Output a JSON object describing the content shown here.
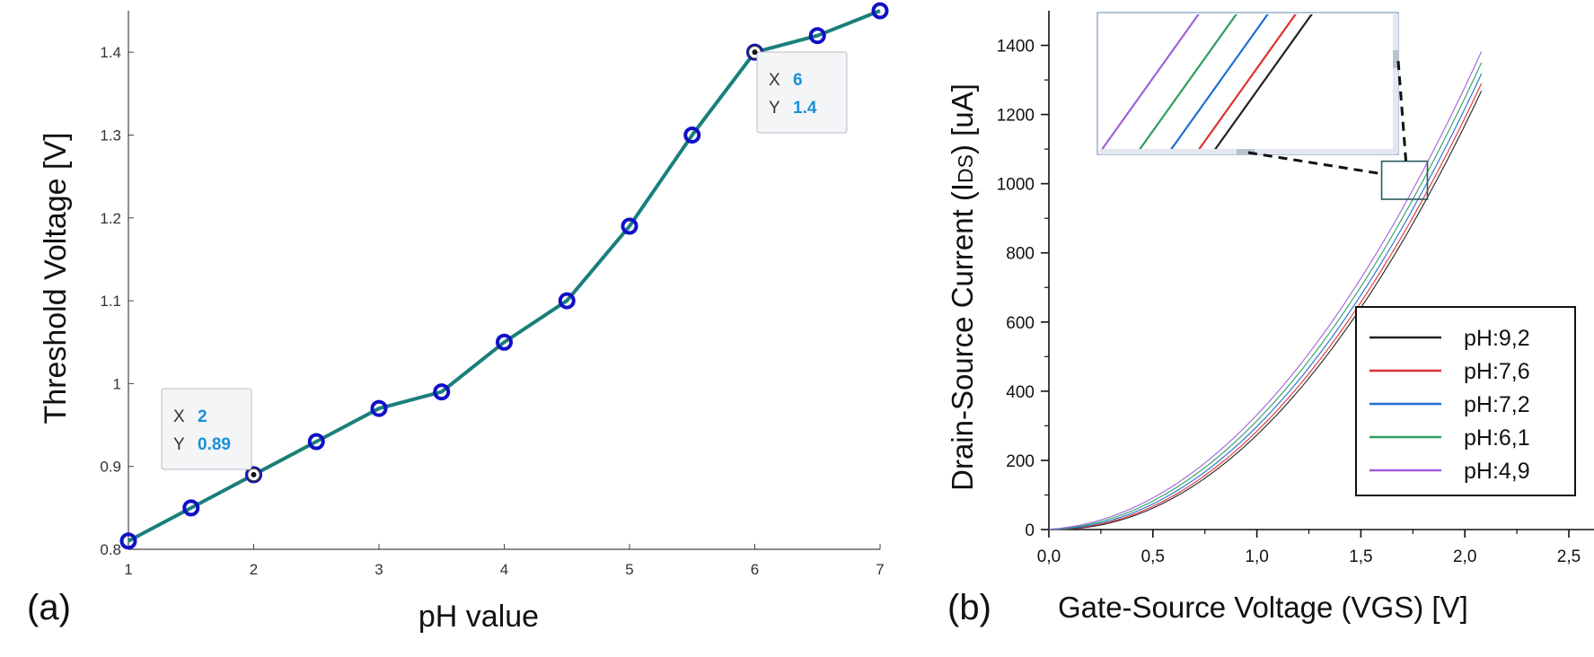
{
  "chart_data": [
    {
      "panel": "(a)",
      "type": "line",
      "xlabel": "pH value",
      "ylabel": "Threshold Voltage [V]",
      "xlim": [
        1,
        7
      ],
      "ylim": [
        0.8,
        1.45
      ],
      "xticks": [
        "1",
        "2",
        "3",
        "4",
        "5",
        "6",
        "7"
      ],
      "yticks": [
        "0.8",
        "0.9",
        "1",
        "1.1",
        "1.2",
        "1.3",
        "1.4"
      ],
      "series": [
        {
          "name": "Threshold Voltage",
          "x": [
            1,
            1.5,
            2,
            2.5,
            3,
            3.5,
            4,
            4.5,
            5,
            5.5,
            6,
            6.5,
            7
          ],
          "y": [
            0.81,
            0.85,
            0.89,
            0.93,
            0.97,
            0.99,
            1.05,
            1.1,
            1.19,
            1.3,
            1.4,
            1.42,
            1.45
          ],
          "line_color": "#1a7f7a",
          "marker_color": "#1010c8"
        }
      ],
      "datatips": [
        {
          "x_label": "X",
          "x_value": "2",
          "y_label": "Y",
          "y_value": "0.89",
          "x": 2,
          "y": 0.89
        },
        {
          "x_label": "X",
          "x_value": "6",
          "y_label": "Y",
          "y_value": "1.4",
          "x": 6,
          "y": 1.4
        }
      ]
    },
    {
      "panel": "(b)",
      "type": "line",
      "xlabel_main": "Gate-Source Voltage (",
      "xlabel_sub": "VGS",
      "xlabel_end": ") [V]",
      "ylabel_main": "Drain-Source Current (I",
      "ylabel_sub": "DS",
      "ylabel_end": ") [uA]",
      "xlim": [
        0,
        2.5
      ],
      "ylim": [
        0,
        1500
      ],
      "xticks": [
        "0,0",
        "0,5",
        "1,0",
        "1,5",
        "2,0",
        "2,5"
      ],
      "yticks": [
        "0",
        "200",
        "400",
        "600",
        "800",
        "1000",
        "1200",
        "1400"
      ],
      "legend_position": "lower-right",
      "series": [
        {
          "name": "pH:9,2",
          "color": "#222222",
          "vth": 0.105,
          "k": 1006
        },
        {
          "name": "pH:7,6",
          "color": "#e03030",
          "vth": 0.085,
          "k": 1003
        },
        {
          "name": "pH:7,2",
          "color": "#1f6fd0",
          "vth": 0.06,
          "k": 1000
        },
        {
          "name": "pH:6,1",
          "color": "#2aa060",
          "vth": 0.03,
          "k": 995
        },
        {
          "name": "pH:4,9",
          "color": "#a060d8",
          "vth": 0.0,
          "k": 990
        }
      ],
      "x_max_data": 2.08,
      "inset_zoom_region": {
        "x": [
          1.6,
          1.82
        ],
        "y": [
          955,
          1065
        ]
      }
    }
  ],
  "panel_labels": {
    "a": "(a)",
    "b": "(b)"
  }
}
